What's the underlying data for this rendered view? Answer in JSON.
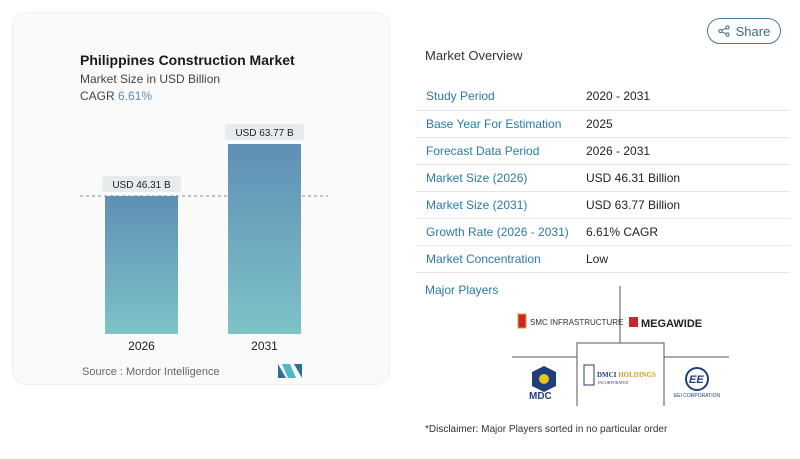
{
  "header": {
    "share_label": "Share",
    "share_icon": "share-icon"
  },
  "card": {
    "title": "Philippines Construction Market",
    "subtitle": "Market Size in USD Billion",
    "cagr_label": "CAGR",
    "cagr_value": "6.61%",
    "source": "Source :  Mordor Intelligence"
  },
  "chart_data": {
    "type": "bar",
    "categories": [
      "2026",
      "2031"
    ],
    "values": [
      46.31,
      63.77
    ],
    "data_labels": [
      "USD 46.31 B",
      "USD 63.77 B"
    ],
    "title": "Philippines Construction Market",
    "ylabel": "Market Size in USD Billion",
    "ylim": [
      0,
      63.77
    ],
    "grid": false,
    "reference_line": 46.31,
    "colors": {
      "top": "#5f8fb5",
      "bottom": "#7ec3c8"
    }
  },
  "overview": {
    "title": "Market Overview",
    "rows": [
      {
        "k": "Study Period",
        "v": "2020 - 2031"
      },
      {
        "k": "Base Year For Estimation",
        "v": "2025"
      },
      {
        "k": "Forecast Data Period",
        "v": "2026 - 2031"
      },
      {
        "k": "Market Size (2026)",
        "v": "USD 46.31 Billion"
      },
      {
        "k": "Market Size (2031)",
        "v": "USD 63.77 Billion"
      },
      {
        "k": "Growth Rate (2026 - 2031)",
        "v": "6.61% CAGR"
      },
      {
        "k": "Market Concentration",
        "v": "Low"
      }
    ],
    "major_players_label": "Major Players",
    "players": [
      "SMC INFRASTRUCTURE",
      "MEGAWIDE",
      "MDC",
      "DMCI HOLDINGS INCORPORATED",
      "EEI CORPORATION"
    ],
    "disclaimer": "*Disclaimer: Major Players sorted in no particular order"
  }
}
